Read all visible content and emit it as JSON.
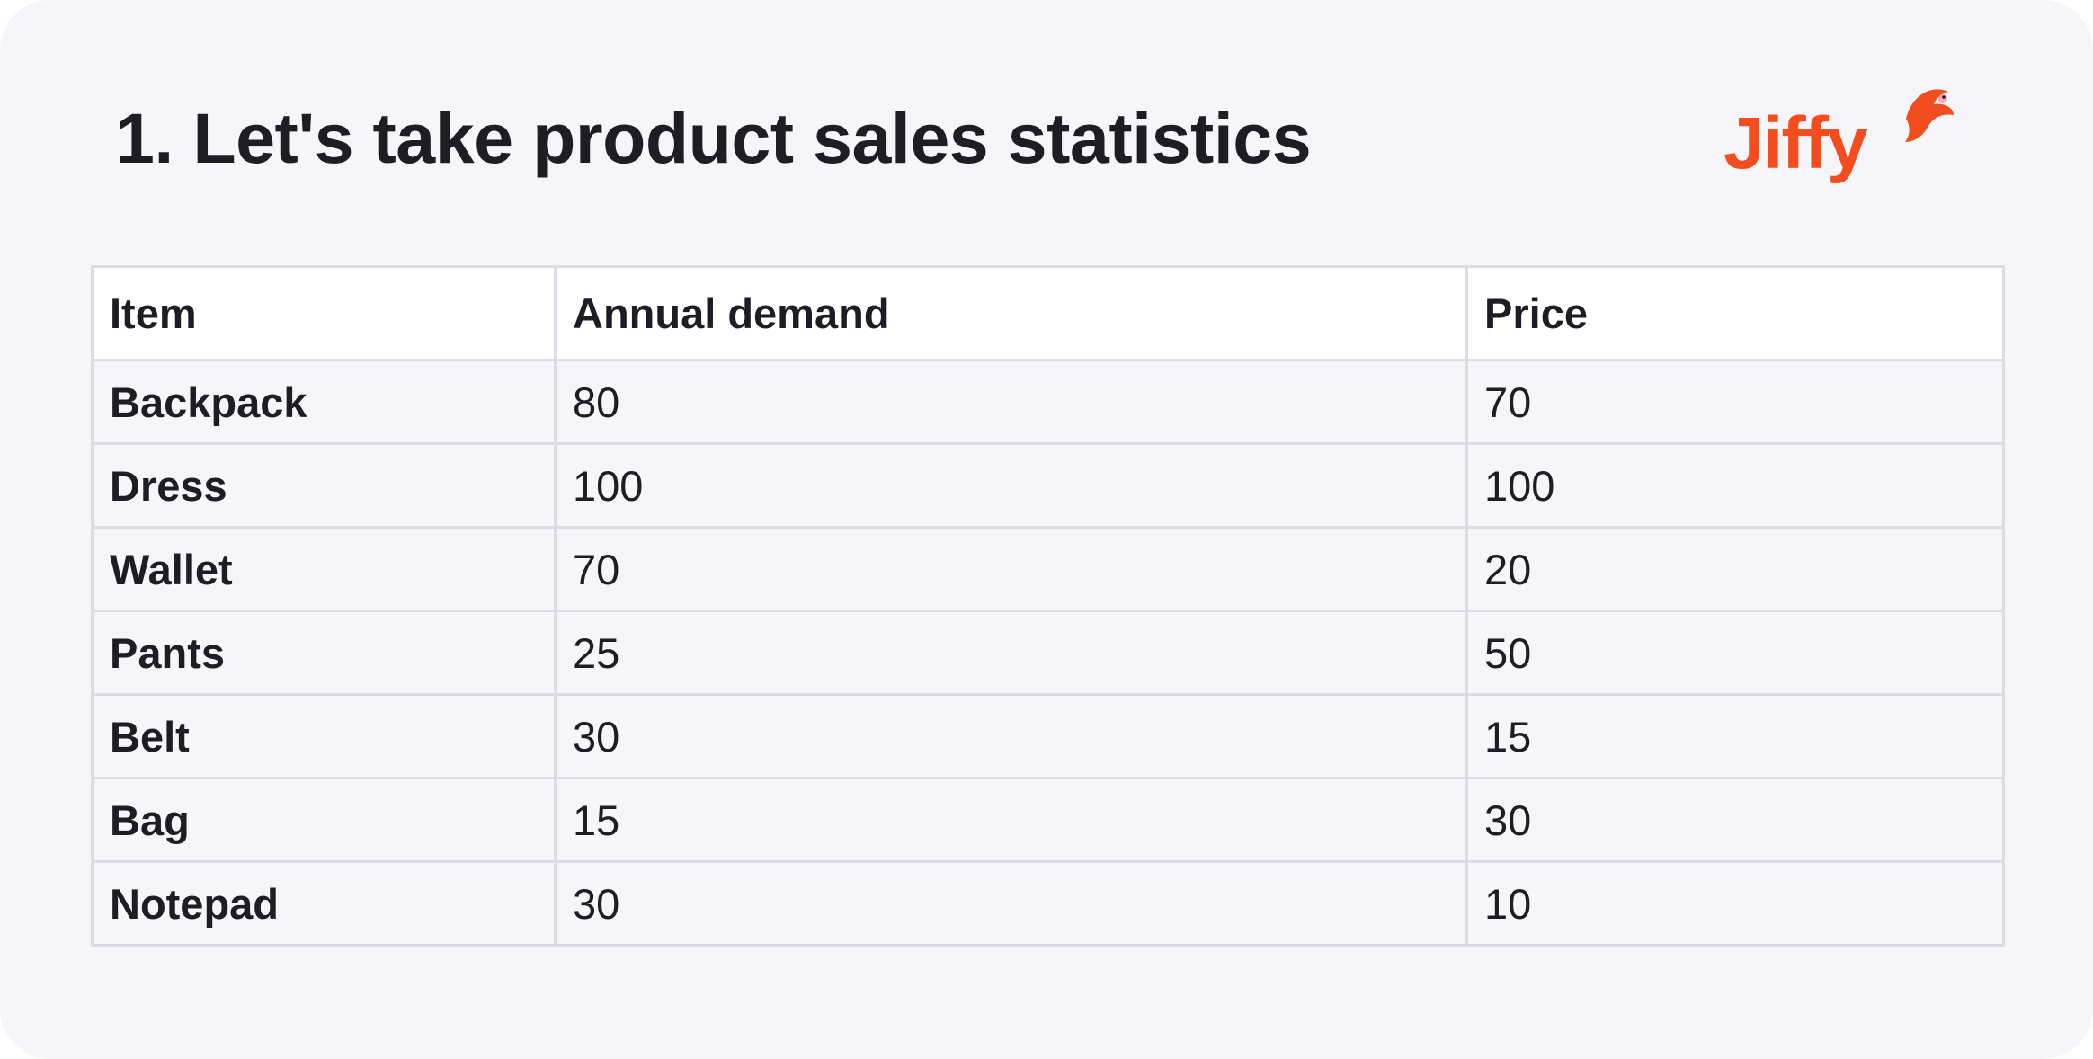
{
  "title": "1. Let's take product sales statistics",
  "logo": {
    "text": "Jiffy",
    "icon": "bird-icon",
    "color": "#f24c1f"
  },
  "table": {
    "headers": [
      "Item",
      "Annual demand",
      "Price"
    ],
    "rows": [
      [
        "Backpack",
        "80",
        "70"
      ],
      [
        "Dress",
        "100",
        "100"
      ],
      [
        "Wallet",
        "70",
        "20"
      ],
      [
        "Pants",
        "25",
        "50"
      ],
      [
        "Belt",
        "30",
        "15"
      ],
      [
        "Bag",
        "15",
        "30"
      ],
      [
        "Notepad",
        "30",
        "10"
      ]
    ]
  },
  "colors": {
    "background": "#f5f5fa",
    "header_background": "#ffffff",
    "grid": "#dcdce6",
    "text": "#1d1d26",
    "brand": "#f24c1f"
  }
}
